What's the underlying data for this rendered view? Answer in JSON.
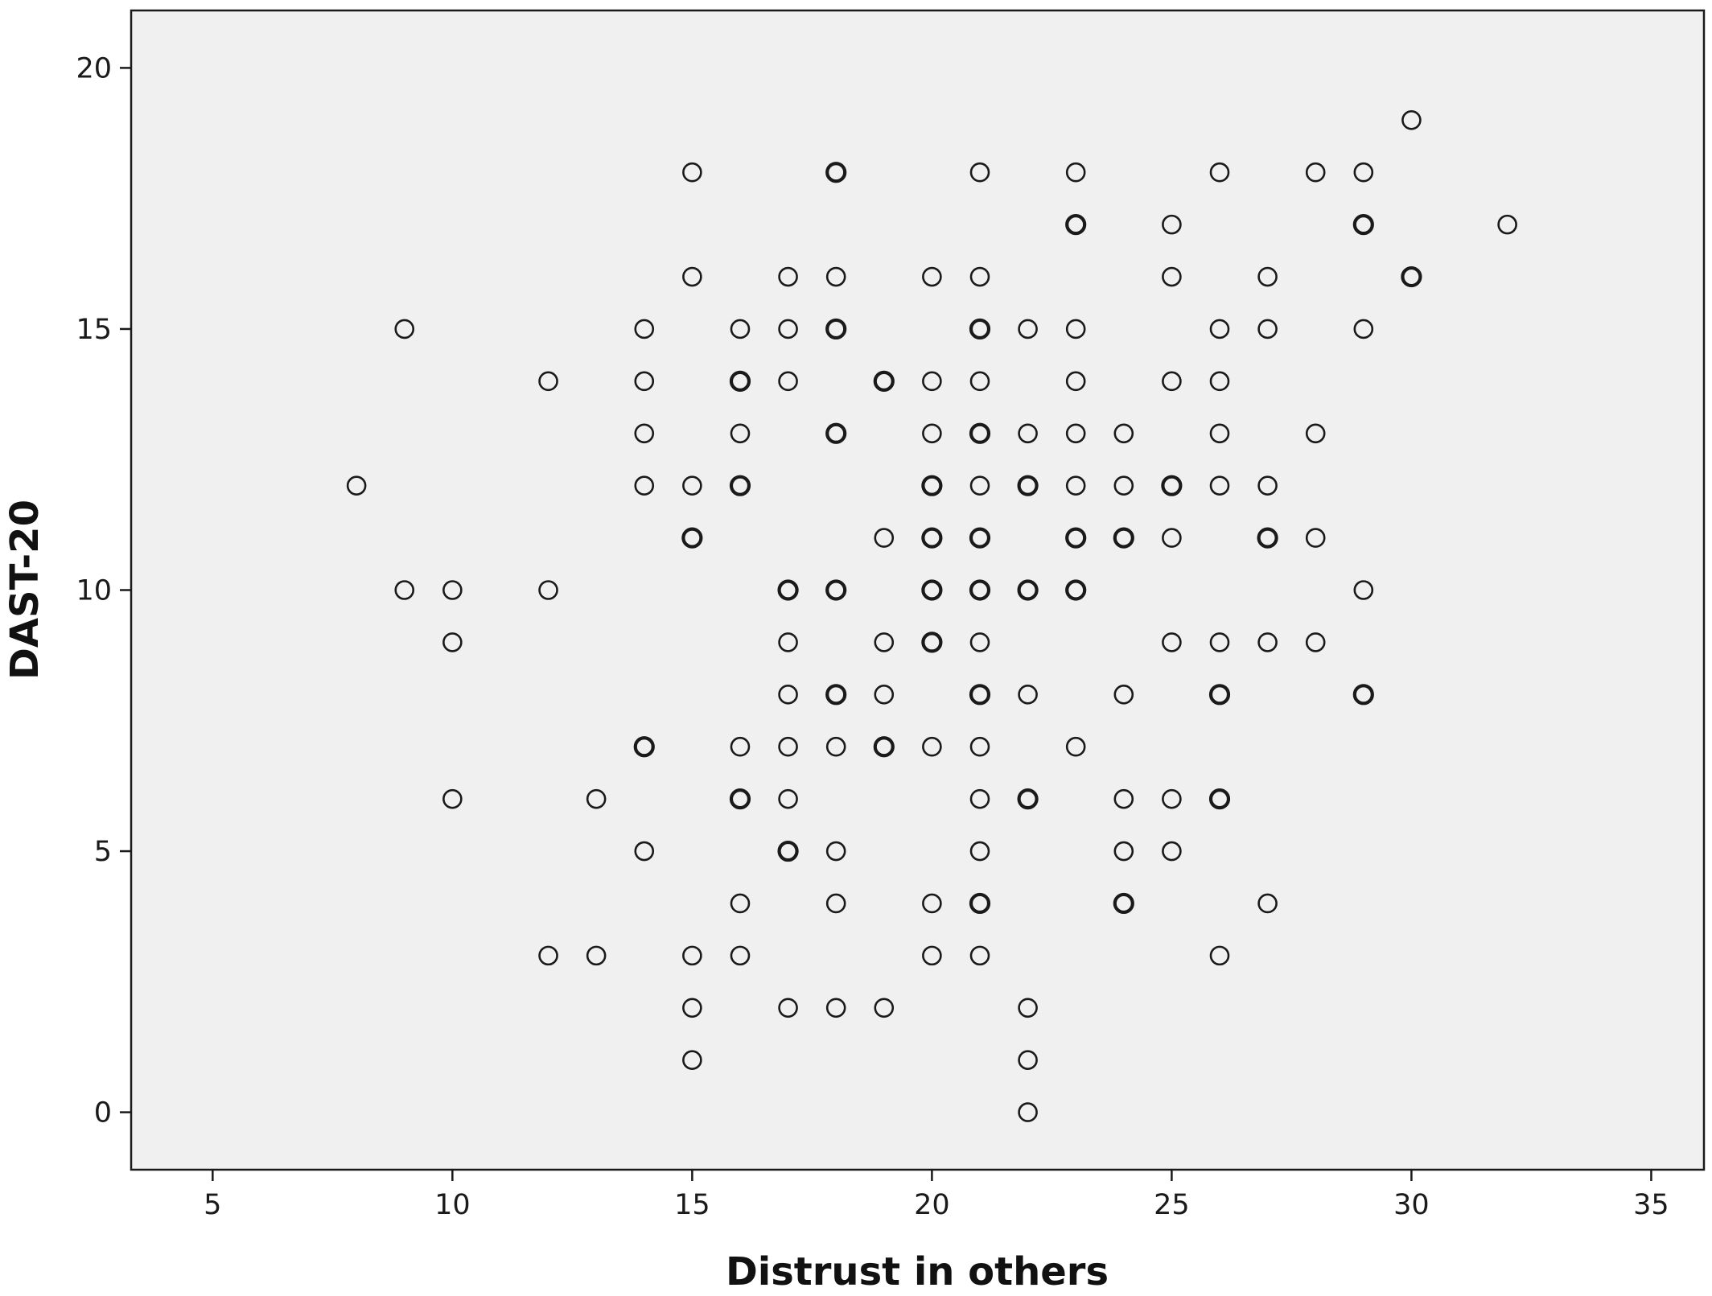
{
  "chart_data": {
    "type": "scatter",
    "title": "",
    "xlabel": "Distrust in others",
    "ylabel": "DAST-20",
    "xlim": [
      3.3,
      36.1
    ],
    "ylim": [
      -1.1,
      21.1
    ],
    "xticks": [
      "5",
      "10",
      "15",
      "20",
      "25",
      "30",
      "35"
    ],
    "yticks": [
      "0",
      "5",
      "10",
      "15",
      "20"
    ],
    "grid": false,
    "legend": "none",
    "colors": {
      "background": "#f0f0f0",
      "marker": "#1a1a1a"
    },
    "marker": "open-circle",
    "series": [
      {
        "points": [
          [
            30,
            19
          ],
          [
            32,
            17
          ],
          [
            15,
            18
          ],
          [
            18,
            18
          ],
          [
            21,
            18
          ],
          [
            23,
            18
          ],
          [
            26,
            18
          ],
          [
            28,
            18
          ],
          [
            29,
            18
          ],
          [
            23,
            17
          ],
          [
            25,
            17
          ],
          [
            29,
            17
          ],
          [
            15,
            16
          ],
          [
            17,
            16
          ],
          [
            18,
            16
          ],
          [
            20,
            16
          ],
          [
            21,
            16
          ],
          [
            25,
            16
          ],
          [
            27,
            16
          ],
          [
            30,
            16
          ],
          [
            9,
            15
          ],
          [
            14,
            15
          ],
          [
            16,
            15
          ],
          [
            17,
            15
          ],
          [
            18,
            15
          ],
          [
            21,
            15
          ],
          [
            22,
            15
          ],
          [
            23,
            15
          ],
          [
            26,
            15
          ],
          [
            27,
            15
          ],
          [
            29,
            15
          ],
          [
            12,
            14
          ],
          [
            14,
            14
          ],
          [
            16,
            14
          ],
          [
            17,
            14
          ],
          [
            19,
            14
          ],
          [
            20,
            14
          ],
          [
            21,
            14
          ],
          [
            23,
            14
          ],
          [
            25,
            14
          ],
          [
            26,
            14
          ],
          [
            14,
            13
          ],
          [
            16,
            13
          ],
          [
            18,
            13
          ],
          [
            20,
            13
          ],
          [
            21,
            13
          ],
          [
            22,
            13
          ],
          [
            23,
            13
          ],
          [
            24,
            13
          ],
          [
            26,
            13
          ],
          [
            28,
            13
          ],
          [
            8,
            12
          ],
          [
            14,
            12
          ],
          [
            15,
            12
          ],
          [
            16,
            12
          ],
          [
            20,
            12
          ],
          [
            21,
            12
          ],
          [
            22,
            12
          ],
          [
            23,
            12
          ],
          [
            24,
            12
          ],
          [
            25,
            12
          ],
          [
            26,
            12
          ],
          [
            27,
            12
          ],
          [
            15,
            11
          ],
          [
            19,
            11
          ],
          [
            20,
            11
          ],
          [
            21,
            11
          ],
          [
            23,
            11
          ],
          [
            24,
            11
          ],
          [
            25,
            11
          ],
          [
            27,
            11
          ],
          [
            28,
            11
          ],
          [
            9,
            10
          ],
          [
            10,
            10
          ],
          [
            12,
            10
          ],
          [
            17,
            10
          ],
          [
            18,
            10
          ],
          [
            20,
            10
          ],
          [
            21,
            10
          ],
          [
            22,
            10
          ],
          [
            23,
            10
          ],
          [
            29,
            10
          ],
          [
            10,
            9
          ],
          [
            17,
            9
          ],
          [
            19,
            9
          ],
          [
            20,
            9
          ],
          [
            21,
            9
          ],
          [
            25,
            9
          ],
          [
            26,
            9
          ],
          [
            27,
            9
          ],
          [
            28,
            9
          ],
          [
            17,
            8
          ],
          [
            18,
            8
          ],
          [
            19,
            8
          ],
          [
            21,
            8
          ],
          [
            22,
            8
          ],
          [
            24,
            8
          ],
          [
            26,
            8
          ],
          [
            29,
            8
          ],
          [
            14,
            7
          ],
          [
            16,
            7
          ],
          [
            17,
            7
          ],
          [
            18,
            7
          ],
          [
            19,
            7
          ],
          [
            20,
            7
          ],
          [
            21,
            7
          ],
          [
            23,
            7
          ],
          [
            10,
            6
          ],
          [
            13,
            6
          ],
          [
            16,
            6
          ],
          [
            17,
            6
          ],
          [
            21,
            6
          ],
          [
            22,
            6
          ],
          [
            24,
            6
          ],
          [
            25,
            6
          ],
          [
            26,
            6
          ],
          [
            14,
            5
          ],
          [
            17,
            5
          ],
          [
            18,
            5
          ],
          [
            21,
            5
          ],
          [
            24,
            5
          ],
          [
            25,
            5
          ],
          [
            16,
            4
          ],
          [
            18,
            4
          ],
          [
            20,
            4
          ],
          [
            21,
            4
          ],
          [
            24,
            4
          ],
          [
            27,
            4
          ],
          [
            12,
            3
          ],
          [
            13,
            3
          ],
          [
            15,
            3
          ],
          [
            16,
            3
          ],
          [
            20,
            3
          ],
          [
            21,
            3
          ],
          [
            26,
            3
          ],
          [
            15,
            2
          ],
          [
            17,
            2
          ],
          [
            18,
            2
          ],
          [
            19,
            2
          ],
          [
            22,
            2
          ],
          [
            15,
            1
          ],
          [
            22,
            1
          ],
          [
            22,
            0
          ]
        ],
        "overlapping": [
          [
            18,
            18
          ],
          [
            23,
            17
          ],
          [
            29,
            17
          ],
          [
            30,
            16
          ],
          [
            18,
            15
          ],
          [
            21,
            15
          ],
          [
            16,
            14
          ],
          [
            19,
            14
          ],
          [
            18,
            13
          ],
          [
            21,
            13
          ],
          [
            16,
            12
          ],
          [
            20,
            12
          ],
          [
            22,
            12
          ],
          [
            25,
            12
          ],
          [
            15,
            11
          ],
          [
            20,
            11
          ],
          [
            21,
            11
          ],
          [
            23,
            11
          ],
          [
            24,
            11
          ],
          [
            27,
            11
          ],
          [
            17,
            10
          ],
          [
            18,
            10
          ],
          [
            20,
            10
          ],
          [
            21,
            10
          ],
          [
            22,
            10
          ],
          [
            23,
            10
          ],
          [
            20,
            9
          ],
          [
            18,
            8
          ],
          [
            21,
            8
          ],
          [
            26,
            8
          ],
          [
            29,
            8
          ],
          [
            14,
            7
          ],
          [
            19,
            7
          ],
          [
            16,
            6
          ],
          [
            22,
            6
          ],
          [
            26,
            6
          ],
          [
            17,
            5
          ],
          [
            21,
            4
          ],
          [
            24,
            4
          ]
        ]
      }
    ]
  }
}
